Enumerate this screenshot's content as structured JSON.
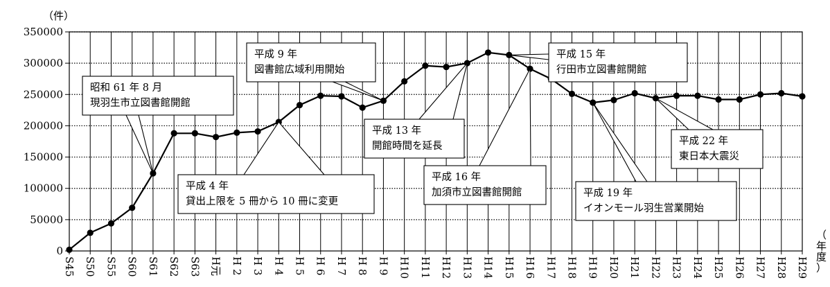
{
  "chart_data": {
    "type": "line",
    "y_unit_label": "（件）",
    "x_unit_label": "（年度）",
    "ylim": [
      0,
      350000
    ],
    "y_ticks": [
      0,
      50000,
      100000,
      150000,
      200000,
      250000,
      300000,
      350000
    ],
    "y_tick_labels": [
      "0",
      "50000",
      "100000",
      "150000",
      "200000",
      "250000",
      "300000",
      "350000"
    ],
    "grid": {
      "horizontal": "dotted",
      "vertical": "solid"
    },
    "categories": [
      "S45",
      "S50",
      "S55",
      "S60",
      "S61",
      "S62",
      "S63",
      "H元",
      "H 2",
      "H 3",
      "H 4",
      "H 5",
      "H 6",
      "H 7",
      "H 8",
      "H 9",
      "H10",
      "H11",
      "H12",
      "H13",
      "H14",
      "H15",
      "H16",
      "H17",
      "H18",
      "H19",
      "H20",
      "H21",
      "H22",
      "H23",
      "H24",
      "H25",
      "H26",
      "H27",
      "H28",
      "H29"
    ],
    "series": [
      {
        "values": [
          2000,
          29000,
          44000,
          69000,
          124000,
          188000,
          188000,
          182000,
          189000,
          191000,
          206000,
          233000,
          248000,
          247000,
          229000,
          240000,
          271000,
          296000,
          294000,
          300000,
          317000,
          313000,
          291000,
          275000,
          251000,
          237000,
          241000,
          252000,
          244000,
          248000,
          248000,
          242000,
          242000,
          250000,
          252000,
          247000
        ]
      }
    ],
    "annotations": [
      {
        "lines": [
          "昭和 61 年 8 月",
          "現羽生市立図書館開館"
        ],
        "target": "S61"
      },
      {
        "lines": [
          "平成 4 年",
          "貸出上限を 5 冊から 10 冊に変更"
        ],
        "target": "H 4"
      },
      {
        "lines": [
          "平成 9 年",
          "図書館広域利用開始"
        ],
        "target": "H 9"
      },
      {
        "lines": [
          "平成 13 年",
          "開館時間を延長"
        ],
        "target": "H13"
      },
      {
        "lines": [
          "平成 15 年",
          "行田市立図書館開館"
        ],
        "target": "H15"
      },
      {
        "lines": [
          "平成 16 年",
          "加須市立図書館開館"
        ],
        "target": "H16"
      },
      {
        "lines": [
          "平成 19 年",
          "イオンモール羽生営業開始"
        ],
        "target": "H19"
      },
      {
        "lines": [
          "平成 22 年",
          "東日本大震災"
        ],
        "target": "H22"
      }
    ]
  }
}
